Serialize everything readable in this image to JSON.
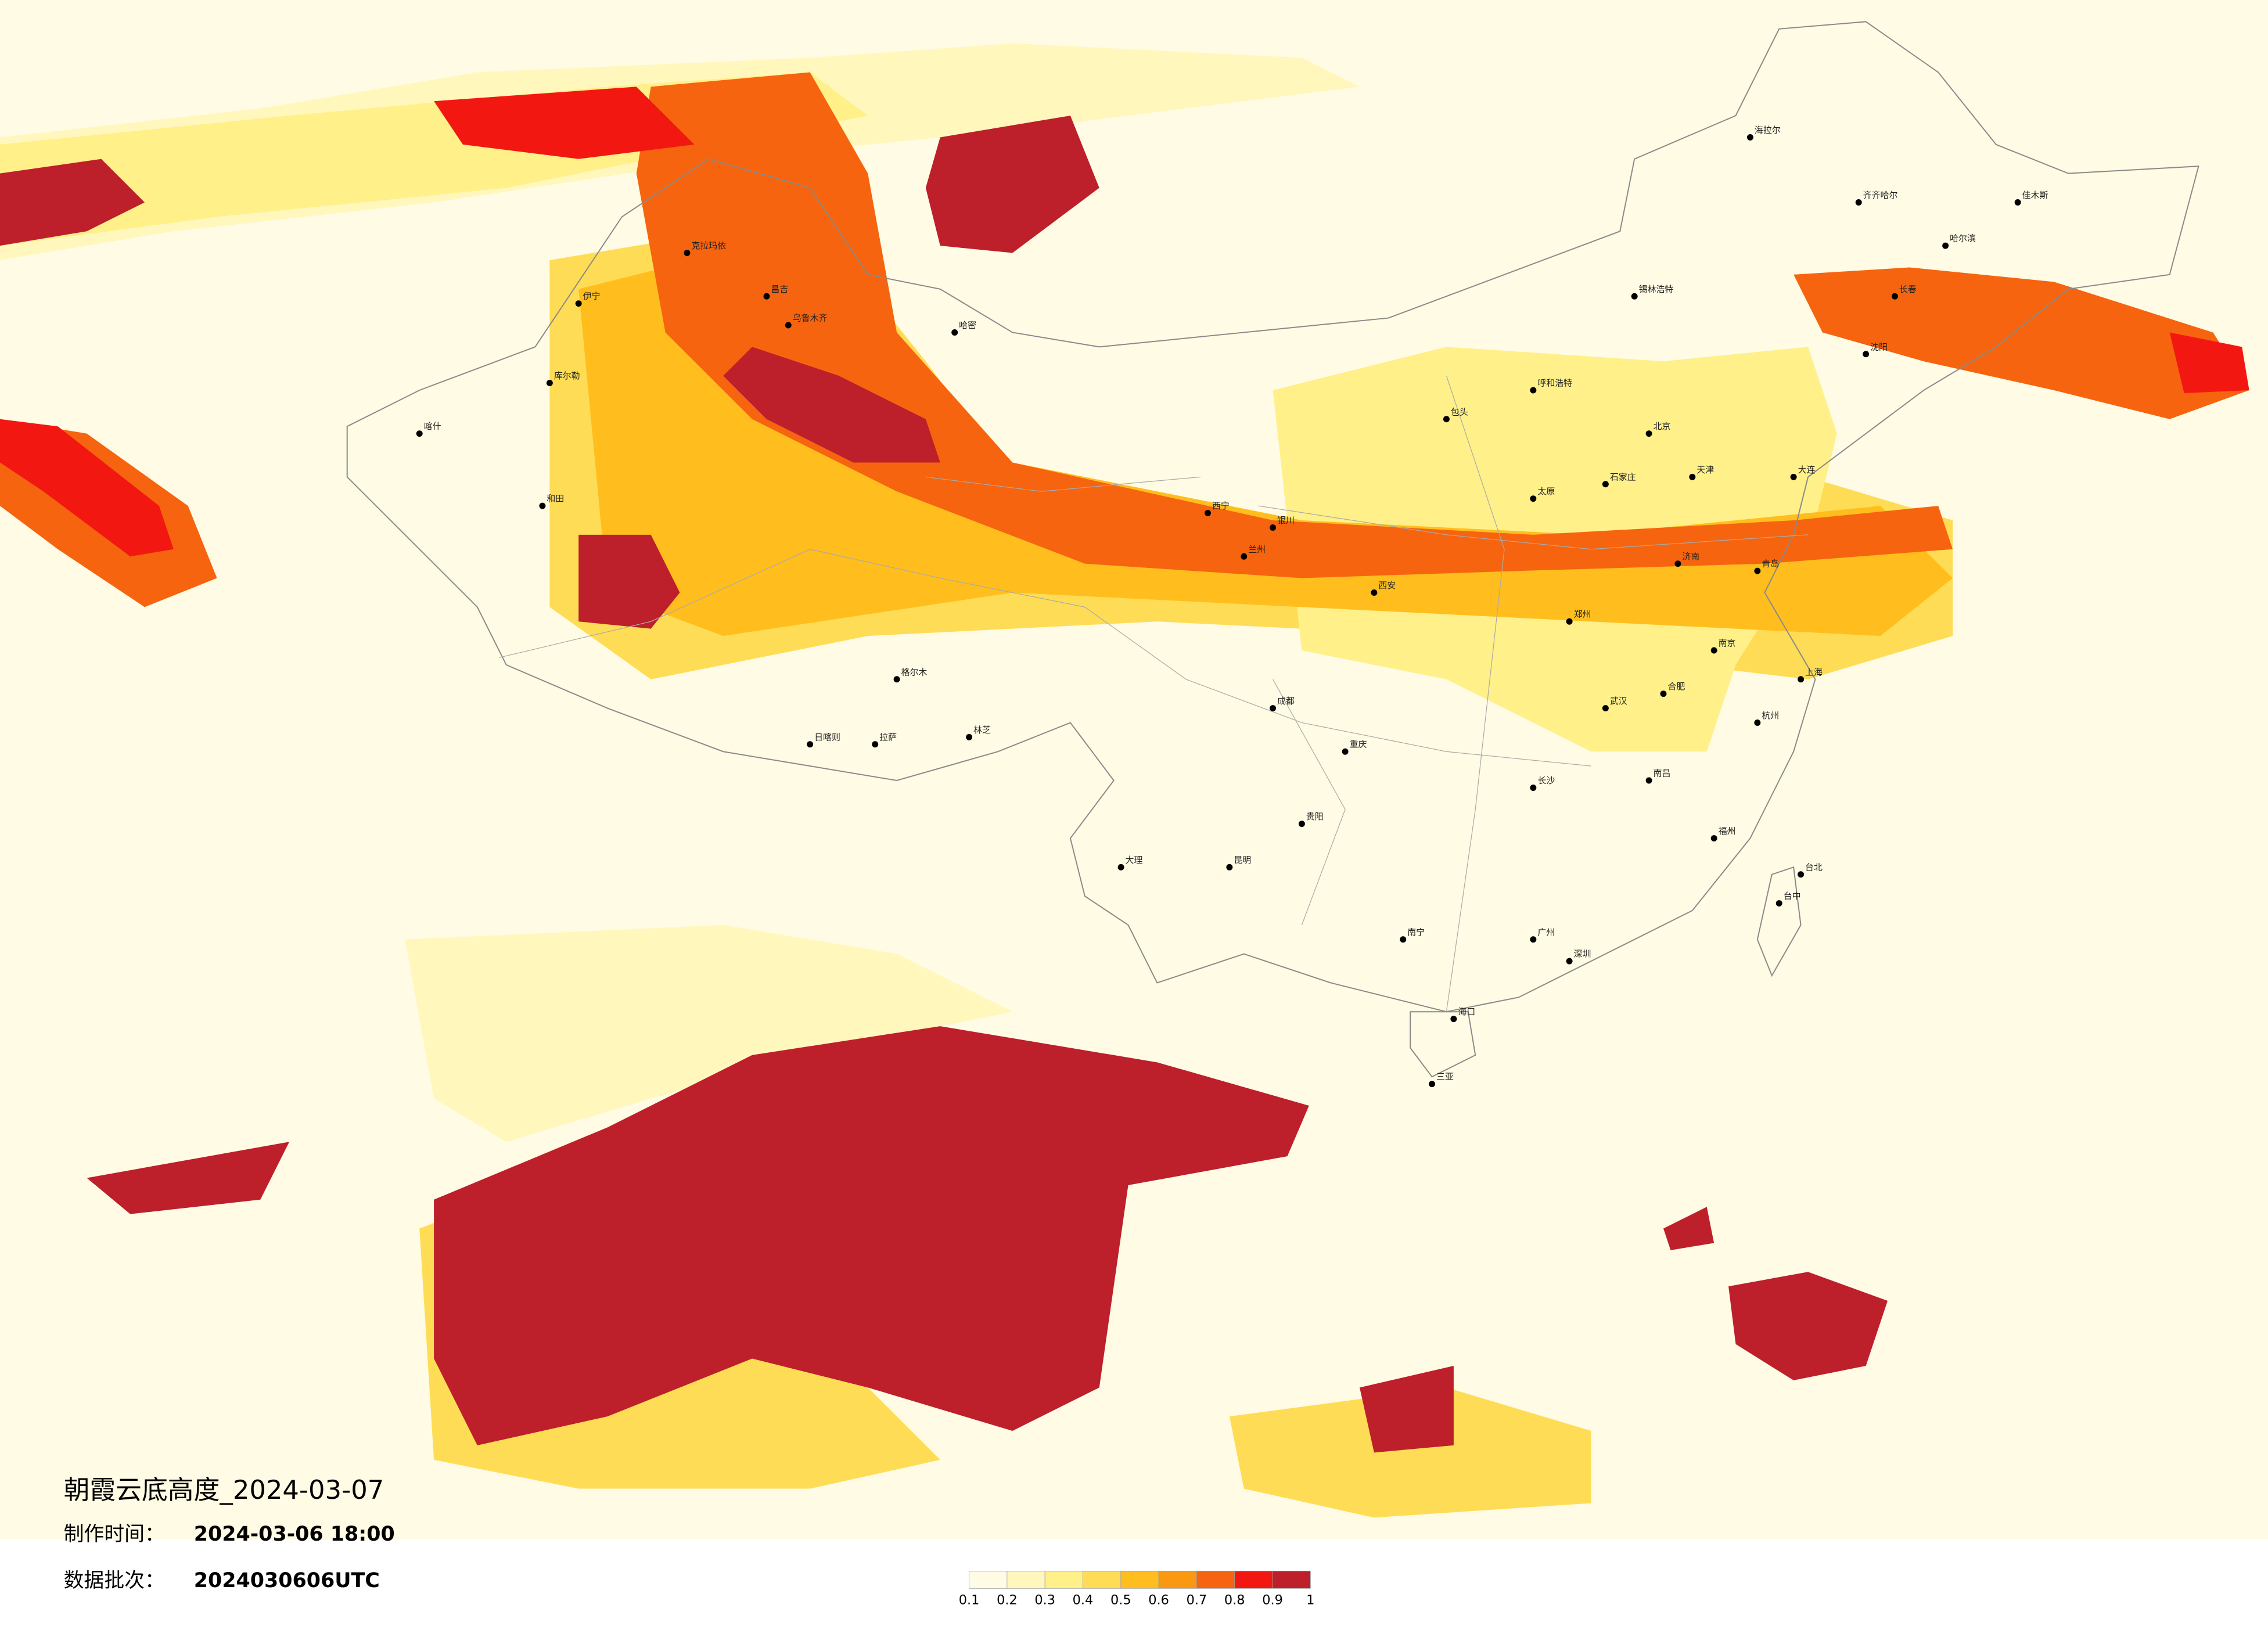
{
  "header": {
    "title": "朝霞云底高度_2024-03-07",
    "made_label": "制作时间：",
    "made_time": "2024-03-06 18:00",
    "batch_label": "数据批次：",
    "batch": "2024030606UTC"
  },
  "legend": {
    "ticks": [
      0.1,
      0.2,
      0.3,
      0.4,
      0.5,
      0.6,
      0.7,
      0.8,
      0.9,
      1
    ],
    "colors": [
      "#fffbe4",
      "#fff7bc",
      "#fff08a",
      "#ffdc55",
      "#ffbe1e",
      "#fb9812",
      "#f6640f",
      "#f31712",
      "#bd1f2b"
    ]
  },
  "cities": [
    "伊宁",
    "克拉玛依",
    "昌吉",
    "乌鲁木齐",
    "哈密",
    "库尔勒",
    "喀什",
    "和田",
    "格尔木",
    "拉萨",
    "日喀则",
    "林芝",
    "西宁",
    "兰州",
    "银川",
    "呼和浩特",
    "包头",
    "北京",
    "天津",
    "石家庄",
    "太原",
    "济南",
    "青岛",
    "郑州",
    "西安",
    "成都",
    "重庆",
    "贵阳",
    "昆明",
    "南宁",
    "广州",
    "深圳",
    "海口",
    "长沙",
    "武汉",
    "南昌",
    "福州",
    "杭州",
    "上海",
    "南京",
    "合肥",
    "沈阳",
    "长春",
    "哈尔滨",
    "齐齐哈尔",
    "佳木斯",
    "海拉尔",
    "锡林浩特",
    "大连",
    "台北",
    "台中",
    "大理",
    "三亚"
  ]
}
